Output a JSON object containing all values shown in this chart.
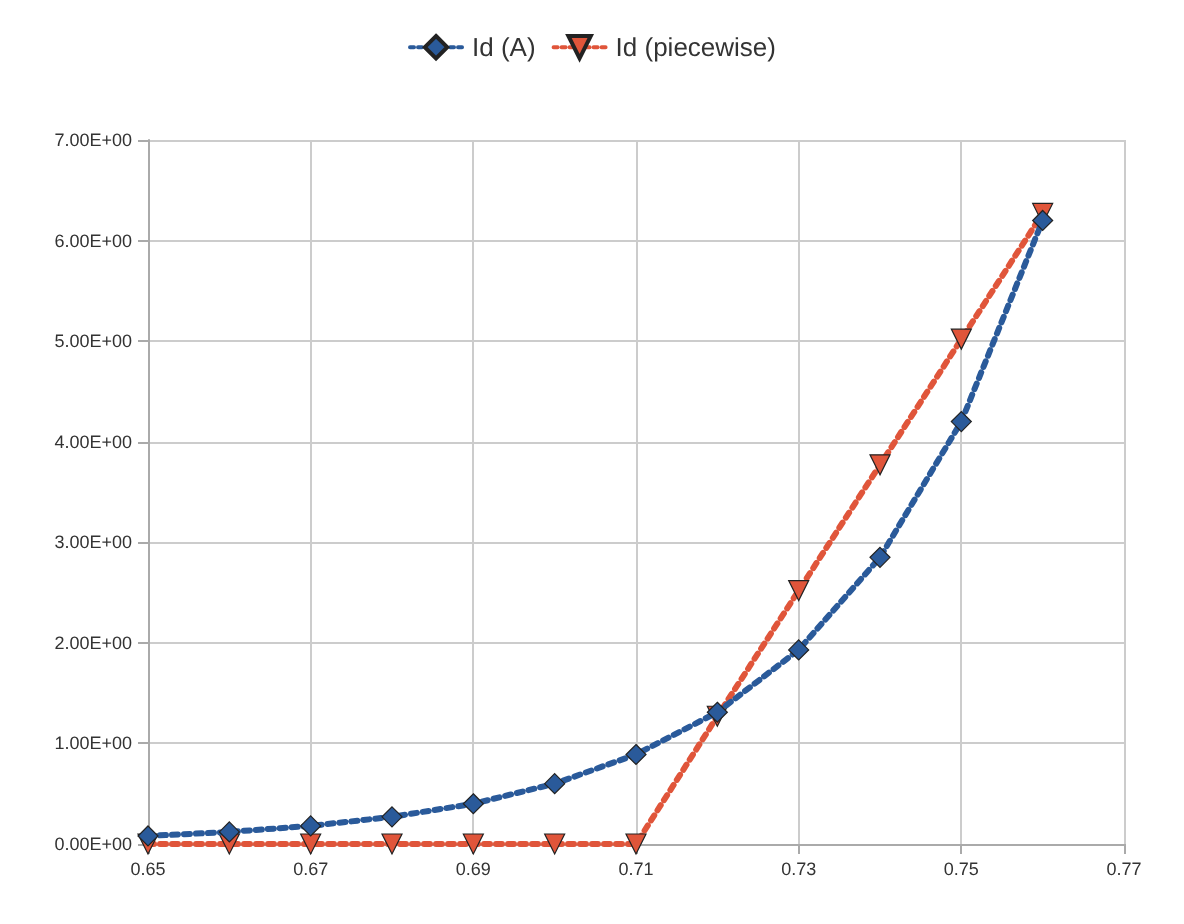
{
  "chart_data": {
    "type": "line",
    "x": [
      0.65,
      0.66,
      0.67,
      0.68,
      0.69,
      0.7,
      0.71,
      0.72,
      0.73,
      0.74,
      0.75,
      0.76
    ],
    "series": [
      {
        "name": "Id (A)",
        "color": "#2a5a9a",
        "marker": "diamond",
        "values": [
          0.08,
          0.12,
          0.18,
          0.27,
          0.4,
          0.6,
          0.89,
          1.31,
          1.93,
          2.85,
          4.2,
          6.2
        ]
      },
      {
        "name": "Id (piecewise)",
        "color": "#e0553a",
        "marker": "triangle",
        "values": [
          0,
          0,
          0,
          0,
          0,
          0,
          0,
          1.27,
          2.52,
          3.77,
          5.02,
          6.27
        ]
      }
    ],
    "xlim": [
      0.65,
      0.77
    ],
    "xticks": [
      0.65,
      0.67,
      0.69,
      0.71,
      0.73,
      0.75,
      0.77
    ],
    "ylim": [
      0,
      7
    ],
    "yticks": [
      {
        "value": 0,
        "label": "0.00E+00"
      },
      {
        "value": 1,
        "label": "1.00E+00"
      },
      {
        "value": 2,
        "label": "2.00E+00"
      },
      {
        "value": 3,
        "label": "3.00E+00"
      },
      {
        "value": 4,
        "label": "4.00E+00"
      },
      {
        "value": 5,
        "label": "5.00E+00"
      },
      {
        "value": 6,
        "label": "6.00E+00"
      },
      {
        "value": 7,
        "label": "7.00E+00"
      }
    ],
    "grid": true,
    "legend": "top",
    "line_style": "dotted"
  }
}
